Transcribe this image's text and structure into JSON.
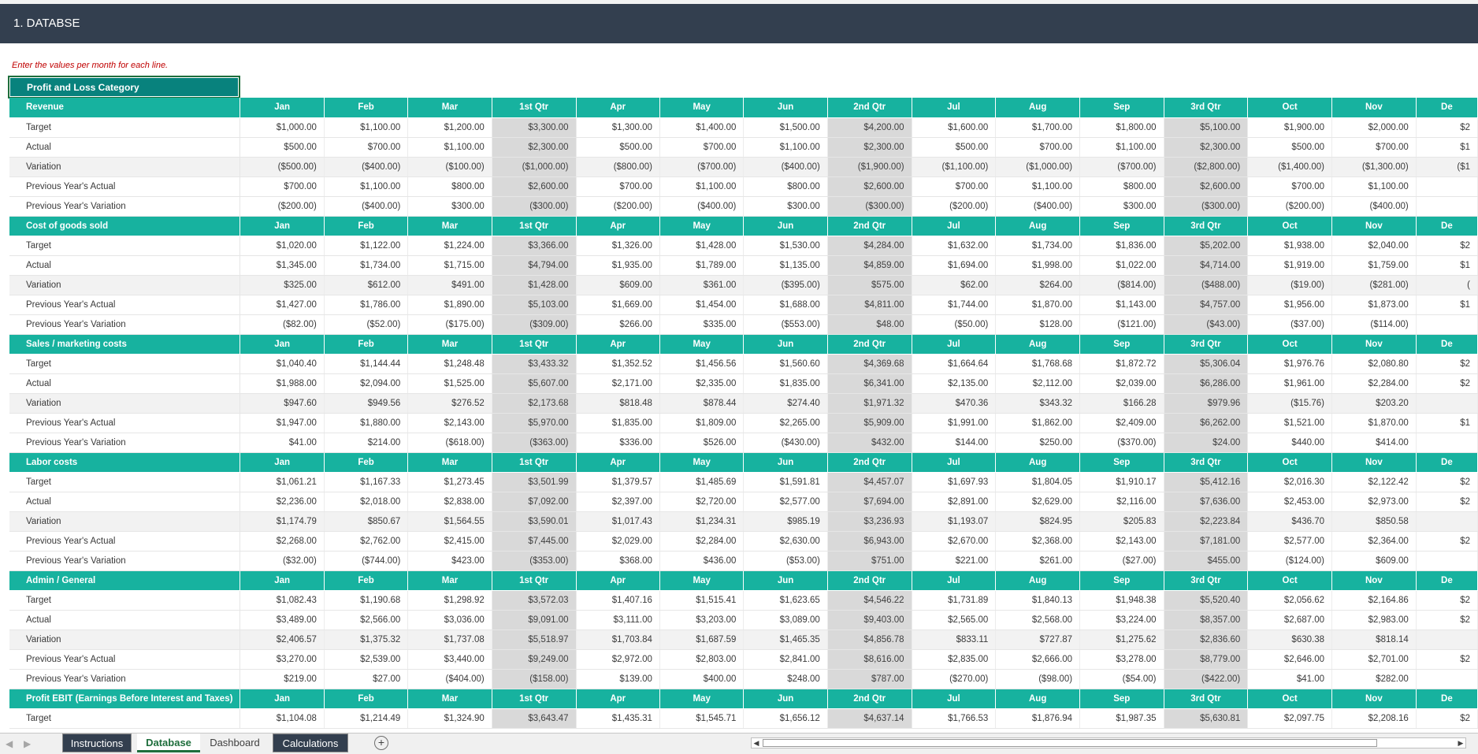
{
  "title": "1. DATABSE",
  "instruction": "Enter the values per month for each line.",
  "category_header": "Profit and Loss Category",
  "columns": [
    "Jan",
    "Feb",
    "Mar",
    "1st Qtr",
    "Apr",
    "May",
    "Jun",
    "2nd Qtr",
    "Jul",
    "Aug",
    "Sep",
    "3rd Qtr",
    "Oct",
    "Nov",
    "De"
  ],
  "sections": [
    {
      "name": "Revenue",
      "rows": [
        {
          "label": "Target",
          "values": [
            "$1,000.00",
            "$1,100.00",
            "$1,200.00",
            "$3,300.00",
            "$1,300.00",
            "$1,400.00",
            "$1,500.00",
            "$4,200.00",
            "$1,600.00",
            "$1,700.00",
            "$1,800.00",
            "$5,100.00",
            "$1,900.00",
            "$2,000.00",
            "$2"
          ]
        },
        {
          "label": "Actual",
          "values": [
            "$500.00",
            "$700.00",
            "$1,100.00",
            "$2,300.00",
            "$500.00",
            "$700.00",
            "$1,100.00",
            "$2,300.00",
            "$500.00",
            "$700.00",
            "$1,100.00",
            "$2,300.00",
            "$500.00",
            "$700.00",
            "$1"
          ]
        },
        {
          "label": "Variation",
          "values": [
            "($500.00)",
            "($400.00)",
            "($100.00)",
            "($1,000.00)",
            "($800.00)",
            "($700.00)",
            "($400.00)",
            "($1,900.00)",
            "($1,100.00)",
            "($1,000.00)",
            "($700.00)",
            "($2,800.00)",
            "($1,400.00)",
            "($1,300.00)",
            "($1"
          ]
        },
        {
          "label": "Previous Year's Actual",
          "values": [
            "$700.00",
            "$1,100.00",
            "$800.00",
            "$2,600.00",
            "$700.00",
            "$1,100.00",
            "$800.00",
            "$2,600.00",
            "$700.00",
            "$1,100.00",
            "$800.00",
            "$2,600.00",
            "$700.00",
            "$1,100.00",
            ""
          ]
        },
        {
          "label": "Previous Year's Variation",
          "values": [
            "($200.00)",
            "($400.00)",
            "$300.00",
            "($300.00)",
            "($200.00)",
            "($400.00)",
            "$300.00",
            "($300.00)",
            "($200.00)",
            "($400.00)",
            "$300.00",
            "($300.00)",
            "($200.00)",
            "($400.00)",
            ""
          ]
        }
      ]
    },
    {
      "name": "Cost of goods sold",
      "rows": [
        {
          "label": "Target",
          "values": [
            "$1,020.00",
            "$1,122.00",
            "$1,224.00",
            "$3,366.00",
            "$1,326.00",
            "$1,428.00",
            "$1,530.00",
            "$4,284.00",
            "$1,632.00",
            "$1,734.00",
            "$1,836.00",
            "$5,202.00",
            "$1,938.00",
            "$2,040.00",
            "$2"
          ]
        },
        {
          "label": "Actual",
          "values": [
            "$1,345.00",
            "$1,734.00",
            "$1,715.00",
            "$4,794.00",
            "$1,935.00",
            "$1,789.00",
            "$1,135.00",
            "$4,859.00",
            "$1,694.00",
            "$1,998.00",
            "$1,022.00",
            "$4,714.00",
            "$1,919.00",
            "$1,759.00",
            "$1"
          ]
        },
        {
          "label": "Variation",
          "values": [
            "$325.00",
            "$612.00",
            "$491.00",
            "$1,428.00",
            "$609.00",
            "$361.00",
            "($395.00)",
            "$575.00",
            "$62.00",
            "$264.00",
            "($814.00)",
            "($488.00)",
            "($19.00)",
            "($281.00)",
            "("
          ]
        },
        {
          "label": "Previous Year's Actual",
          "values": [
            "$1,427.00",
            "$1,786.00",
            "$1,890.00",
            "$5,103.00",
            "$1,669.00",
            "$1,454.00",
            "$1,688.00",
            "$4,811.00",
            "$1,744.00",
            "$1,870.00",
            "$1,143.00",
            "$4,757.00",
            "$1,956.00",
            "$1,873.00",
            "$1"
          ]
        },
        {
          "label": "Previous Year's Variation",
          "values": [
            "($82.00)",
            "($52.00)",
            "($175.00)",
            "($309.00)",
            "$266.00",
            "$335.00",
            "($553.00)",
            "$48.00",
            "($50.00)",
            "$128.00",
            "($121.00)",
            "($43.00)",
            "($37.00)",
            "($114.00)",
            ""
          ]
        }
      ]
    },
    {
      "name": "Sales / marketing costs",
      "rows": [
        {
          "label": "Target",
          "values": [
            "$1,040.40",
            "$1,144.44",
            "$1,248.48",
            "$3,433.32",
            "$1,352.52",
            "$1,456.56",
            "$1,560.60",
            "$4,369.68",
            "$1,664.64",
            "$1,768.68",
            "$1,872.72",
            "$5,306.04",
            "$1,976.76",
            "$2,080.80",
            "$2"
          ]
        },
        {
          "label": "Actual",
          "values": [
            "$1,988.00",
            "$2,094.00",
            "$1,525.00",
            "$5,607.00",
            "$2,171.00",
            "$2,335.00",
            "$1,835.00",
            "$6,341.00",
            "$2,135.00",
            "$2,112.00",
            "$2,039.00",
            "$6,286.00",
            "$1,961.00",
            "$2,284.00",
            "$2"
          ]
        },
        {
          "label": "Variation",
          "values": [
            "$947.60",
            "$949.56",
            "$276.52",
            "$2,173.68",
            "$818.48",
            "$878.44",
            "$274.40",
            "$1,971.32",
            "$470.36",
            "$343.32",
            "$166.28",
            "$979.96",
            "($15.76)",
            "$203.20",
            ""
          ]
        },
        {
          "label": "Previous Year's Actual",
          "values": [
            "$1,947.00",
            "$1,880.00",
            "$2,143.00",
            "$5,970.00",
            "$1,835.00",
            "$1,809.00",
            "$2,265.00",
            "$5,909.00",
            "$1,991.00",
            "$1,862.00",
            "$2,409.00",
            "$6,262.00",
            "$1,521.00",
            "$1,870.00",
            "$1"
          ]
        },
        {
          "label": "Previous Year's Variation",
          "values": [
            "$41.00",
            "$214.00",
            "($618.00)",
            "($363.00)",
            "$336.00",
            "$526.00",
            "($430.00)",
            "$432.00",
            "$144.00",
            "$250.00",
            "($370.00)",
            "$24.00",
            "$440.00",
            "$414.00",
            ""
          ]
        }
      ]
    },
    {
      "name": "Labor costs",
      "rows": [
        {
          "label": "Target",
          "values": [
            "$1,061.21",
            "$1,167.33",
            "$1,273.45",
            "$3,501.99",
            "$1,379.57",
            "$1,485.69",
            "$1,591.81",
            "$4,457.07",
            "$1,697.93",
            "$1,804.05",
            "$1,910.17",
            "$5,412.16",
            "$2,016.30",
            "$2,122.42",
            "$2"
          ]
        },
        {
          "label": "Actual",
          "values": [
            "$2,236.00",
            "$2,018.00",
            "$2,838.00",
            "$7,092.00",
            "$2,397.00",
            "$2,720.00",
            "$2,577.00",
            "$7,694.00",
            "$2,891.00",
            "$2,629.00",
            "$2,116.00",
            "$7,636.00",
            "$2,453.00",
            "$2,973.00",
            "$2"
          ]
        },
        {
          "label": "Variation",
          "values": [
            "$1,174.79",
            "$850.67",
            "$1,564.55",
            "$3,590.01",
            "$1,017.43",
            "$1,234.31",
            "$985.19",
            "$3,236.93",
            "$1,193.07",
            "$824.95",
            "$205.83",
            "$2,223.84",
            "$436.70",
            "$850.58",
            ""
          ]
        },
        {
          "label": "Previous Year's Actual",
          "values": [
            "$2,268.00",
            "$2,762.00",
            "$2,415.00",
            "$7,445.00",
            "$2,029.00",
            "$2,284.00",
            "$2,630.00",
            "$6,943.00",
            "$2,670.00",
            "$2,368.00",
            "$2,143.00",
            "$7,181.00",
            "$2,577.00",
            "$2,364.00",
            "$2"
          ]
        },
        {
          "label": "Previous Year's Variation",
          "values": [
            "($32.00)",
            "($744.00)",
            "$423.00",
            "($353.00)",
            "$368.00",
            "$436.00",
            "($53.00)",
            "$751.00",
            "$221.00",
            "$261.00",
            "($27.00)",
            "$455.00",
            "($124.00)",
            "$609.00",
            ""
          ]
        }
      ]
    },
    {
      "name": "Admin / General",
      "rows": [
        {
          "label": "Target",
          "values": [
            "$1,082.43",
            "$1,190.68",
            "$1,298.92",
            "$3,572.03",
            "$1,407.16",
            "$1,515.41",
            "$1,623.65",
            "$4,546.22",
            "$1,731.89",
            "$1,840.13",
            "$1,948.38",
            "$5,520.40",
            "$2,056.62",
            "$2,164.86",
            "$2"
          ]
        },
        {
          "label": "Actual",
          "values": [
            "$3,489.00",
            "$2,566.00",
            "$3,036.00",
            "$9,091.00",
            "$3,111.00",
            "$3,203.00",
            "$3,089.00",
            "$9,403.00",
            "$2,565.00",
            "$2,568.00",
            "$3,224.00",
            "$8,357.00",
            "$2,687.00",
            "$2,983.00",
            "$2"
          ]
        },
        {
          "label": "Variation",
          "values": [
            "$2,406.57",
            "$1,375.32",
            "$1,737.08",
            "$5,518.97",
            "$1,703.84",
            "$1,687.59",
            "$1,465.35",
            "$4,856.78",
            "$833.11",
            "$727.87",
            "$1,275.62",
            "$2,836.60",
            "$630.38",
            "$818.14",
            ""
          ]
        },
        {
          "label": "Previous Year's Actual",
          "values": [
            "$3,270.00",
            "$2,539.00",
            "$3,440.00",
            "$9,249.00",
            "$2,972.00",
            "$2,803.00",
            "$2,841.00",
            "$8,616.00",
            "$2,835.00",
            "$2,666.00",
            "$3,278.00",
            "$8,779.00",
            "$2,646.00",
            "$2,701.00",
            "$2"
          ]
        },
        {
          "label": "Previous Year's Variation",
          "values": [
            "$219.00",
            "$27.00",
            "($404.00)",
            "($158.00)",
            "$139.00",
            "$400.00",
            "$248.00",
            "$787.00",
            "($270.00)",
            "($98.00)",
            "($54.00)",
            "($422.00)",
            "$41.00",
            "$282.00",
            ""
          ]
        }
      ]
    },
    {
      "name": "Profit EBIT (Earnings Before Interest and Taxes)",
      "rows": [
        {
          "label": "Target",
          "values": [
            "$1,104.08",
            "$1,214.49",
            "$1,324.90",
            "$3,643.47",
            "$1,435.31",
            "$1,545.71",
            "$1,656.12",
            "$4,637.14",
            "$1,766.53",
            "$1,876.94",
            "$1,987.35",
            "$5,630.81",
            "$2,097.75",
            "$2,208.16",
            "$2"
          ]
        }
      ]
    }
  ],
  "sheet_tabs": [
    {
      "label": "Instructions",
      "style": "dark"
    },
    {
      "label": "Database",
      "style": "active"
    },
    {
      "label": "Dashboard",
      "style": "plain"
    },
    {
      "label": "Calculations",
      "style": "dark"
    }
  ],
  "nav_icons": [
    "prev-sheet-icon",
    "next-sheet-icon",
    "add-sheet-icon"
  ]
}
